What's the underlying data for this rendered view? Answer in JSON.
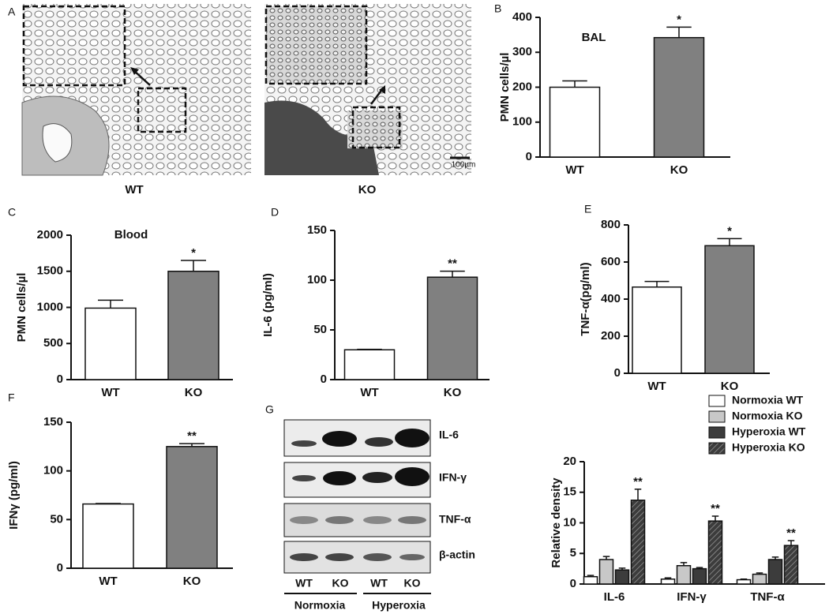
{
  "panel_labels": [
    "A",
    "B",
    "C",
    "D",
    "E",
    "F",
    "G"
  ],
  "micrographs": {
    "captions": [
      "WT",
      "KO"
    ],
    "scale_bar": "100µm"
  },
  "chart_data": [
    {
      "type": "bar",
      "title": "BAL",
      "y_label": "PMN cells/µl",
      "categories": [
        "WT",
        "KO"
      ],
      "values": [
        200,
        342
      ],
      "errors": [
        18,
        30
      ],
      "colors": [
        "#ffffff",
        "#808080"
      ],
      "ylim": [
        0,
        400
      ],
      "yticks": [
        0,
        100,
        200,
        300,
        400
      ],
      "annotations": [
        {
          "text": "*",
          "category": "KO"
        }
      ]
    },
    {
      "type": "bar",
      "title": "Blood",
      "y_label": "PMN cells/µl",
      "categories": [
        "WT",
        "KO"
      ],
      "values": [
        990,
        1500
      ],
      "errors": [
        110,
        150
      ],
      "colors": [
        "#ffffff",
        "#808080"
      ],
      "ylim": [
        0,
        2000
      ],
      "yticks": [
        0,
        500,
        1000,
        1500,
        2000
      ],
      "annotations": [
        {
          "text": "*",
          "category": "KO"
        }
      ]
    },
    {
      "type": "bar",
      "y_label": "IL-6 (pg/ml)",
      "categories": [
        "WT",
        "KO"
      ],
      "values": [
        30,
        103
      ],
      "errors": [
        0.5,
        6
      ],
      "colors": [
        "#ffffff",
        "#808080"
      ],
      "ylim": [
        0,
        150
      ],
      "yticks": [
        0,
        50,
        100,
        150
      ],
      "annotations": [
        {
          "text": "**",
          "category": "KO"
        }
      ]
    },
    {
      "type": "bar",
      "y_label": "TNF-α(pg/ml)",
      "categories": [
        "WT",
        "KO"
      ],
      "values": [
        465,
        688
      ],
      "errors": [
        30,
        38
      ],
      "colors": [
        "#ffffff",
        "#808080"
      ],
      "ylim": [
        0,
        800
      ],
      "yticks": [
        0,
        200,
        400,
        600,
        800
      ],
      "annotations": [
        {
          "text": "*",
          "category": "KO"
        }
      ]
    },
    {
      "type": "bar",
      "y_label": "IFNγ (pg/ml)",
      "categories": [
        "WT",
        "KO"
      ],
      "values": [
        66,
        125
      ],
      "errors": [
        0.5,
        3
      ],
      "colors": [
        "#ffffff",
        "#808080"
      ],
      "ylim": [
        0,
        150
      ],
      "yticks": [
        0,
        50,
        100,
        150
      ],
      "annotations": [
        {
          "text": "**",
          "category": "KO"
        }
      ]
    },
    {
      "type": "grouped-bar",
      "y_label": "Relative density",
      "categories": [
        "IL-6",
        "IFN-γ",
        "TNF-α"
      ],
      "ylim": [
        0,
        20
      ],
      "yticks": [
        0,
        5,
        10,
        15,
        20
      ],
      "legend": "top-right",
      "series": [
        {
          "name": "Normoxia WT",
          "color": "#ffffff",
          "values": [
            1.2,
            0.8,
            0.7
          ],
          "errors": [
            0.2,
            0.2,
            0.1
          ]
        },
        {
          "name": "Normoxia KO",
          "color": "#c8c8c8",
          "values": [
            4.0,
            3.0,
            1.6
          ],
          "errors": [
            0.5,
            0.5,
            0.2
          ]
        },
        {
          "name": "Hyperoxia WT",
          "color": "#3c3c3c",
          "values": [
            2.3,
            2.5,
            4.0
          ],
          "errors": [
            0.3,
            0.2,
            0.4
          ]
        },
        {
          "name": "Hyperoxia KO",
          "color": "#3c3c3c",
          "hatch": true,
          "values": [
            13.7,
            10.3,
            6.3
          ],
          "errors": [
            1.8,
            0.8,
            0.8
          ]
        }
      ],
      "annotations": [
        {
          "text": "**",
          "series": "Hyperoxia KO",
          "category": "IL-6"
        },
        {
          "text": "**",
          "series": "Hyperoxia KO",
          "category": "IFN-γ"
        },
        {
          "text": "**",
          "series": "Hyperoxia KO",
          "category": "TNF-α"
        }
      ]
    }
  ],
  "blot": {
    "bands": [
      "IL-6",
      "IFN-γ",
      "TNF-α",
      "β-actin"
    ],
    "lanes": [
      "WT",
      "KO",
      "WT",
      "KO"
    ],
    "groups": [
      "Normoxia",
      "Hyperoxia"
    ]
  }
}
